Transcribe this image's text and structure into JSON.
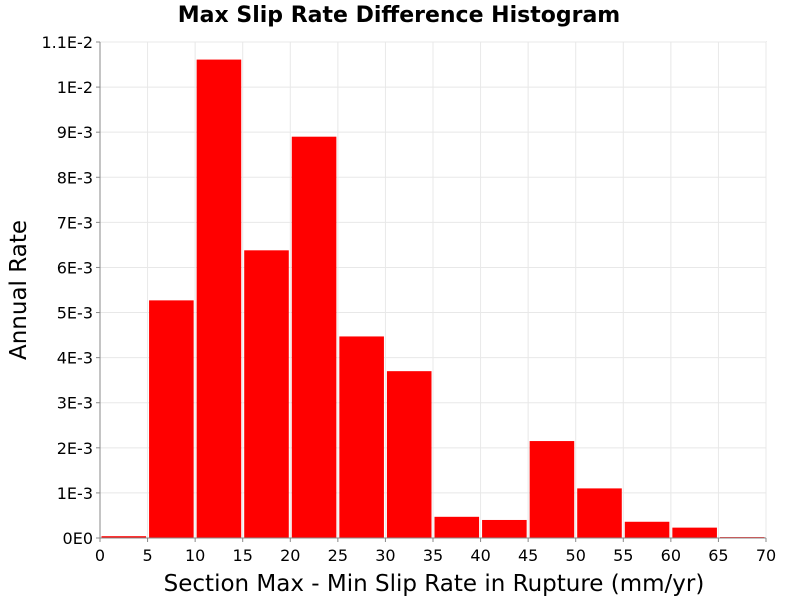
{
  "chart_data": {
    "type": "bar",
    "title": "Max Slip Rate Difference Histogram",
    "xlabel": "Section Max - Min Slip Rate in Rupture (mm/yr)",
    "ylabel": "Annual Rate",
    "xlim": [
      0,
      70
    ],
    "ylim": [
      0,
      0.011
    ],
    "grid": true,
    "bar_color": "#ff0000",
    "x_ticks": [
      {
        "value": 0,
        "label": "0"
      },
      {
        "value": 5,
        "label": "5"
      },
      {
        "value": 10,
        "label": "10"
      },
      {
        "value": 15,
        "label": "15"
      },
      {
        "value": 20,
        "label": "20"
      },
      {
        "value": 25,
        "label": "25"
      },
      {
        "value": 30,
        "label": "30"
      },
      {
        "value": 35,
        "label": "35"
      },
      {
        "value": 40,
        "label": "40"
      },
      {
        "value": 45,
        "label": "45"
      },
      {
        "value": 50,
        "label": "50"
      },
      {
        "value": 55,
        "label": "55"
      },
      {
        "value": 60,
        "label": "60"
      },
      {
        "value": 65,
        "label": "65"
      },
      {
        "value": 70,
        "label": "70"
      }
    ],
    "y_ticks": [
      {
        "value": 0,
        "label": "0E0"
      },
      {
        "value": 0.001,
        "label": "1E-3"
      },
      {
        "value": 0.002,
        "label": "2E-3"
      },
      {
        "value": 0.003,
        "label": "3E-3"
      },
      {
        "value": 0.004,
        "label": "4E-3"
      },
      {
        "value": 0.005,
        "label": "5E-3"
      },
      {
        "value": 0.006,
        "label": "6E-3"
      },
      {
        "value": 0.007,
        "label": "7E-3"
      },
      {
        "value": 0.008,
        "label": "8E-3"
      },
      {
        "value": 0.009,
        "label": "9E-3"
      },
      {
        "value": 0.01,
        "label": "1E-2"
      },
      {
        "value": 0.011,
        "label": "1.1E-2"
      }
    ],
    "bins": [
      {
        "x0": 0,
        "x1": 5,
        "value": 4e-05
      },
      {
        "x0": 5,
        "x1": 10,
        "value": 0.00527
      },
      {
        "x0": 10,
        "x1": 15,
        "value": 0.01061
      },
      {
        "x0": 15,
        "x1": 20,
        "value": 0.00638
      },
      {
        "x0": 20,
        "x1": 25,
        "value": 0.0089
      },
      {
        "x0": 25,
        "x1": 30,
        "value": 0.00447
      },
      {
        "x0": 30,
        "x1": 35,
        "value": 0.0037
      },
      {
        "x0": 35,
        "x1": 40,
        "value": 0.00047
      },
      {
        "x0": 40,
        "x1": 45,
        "value": 0.0004
      },
      {
        "x0": 45,
        "x1": 50,
        "value": 0.00215
      },
      {
        "x0": 50,
        "x1": 55,
        "value": 0.0011
      },
      {
        "x0": 55,
        "x1": 60,
        "value": 0.00036
      },
      {
        "x0": 60,
        "x1": 65,
        "value": 0.00023
      },
      {
        "x0": 65,
        "x1": 70,
        "value": 2e-05
      }
    ]
  }
}
